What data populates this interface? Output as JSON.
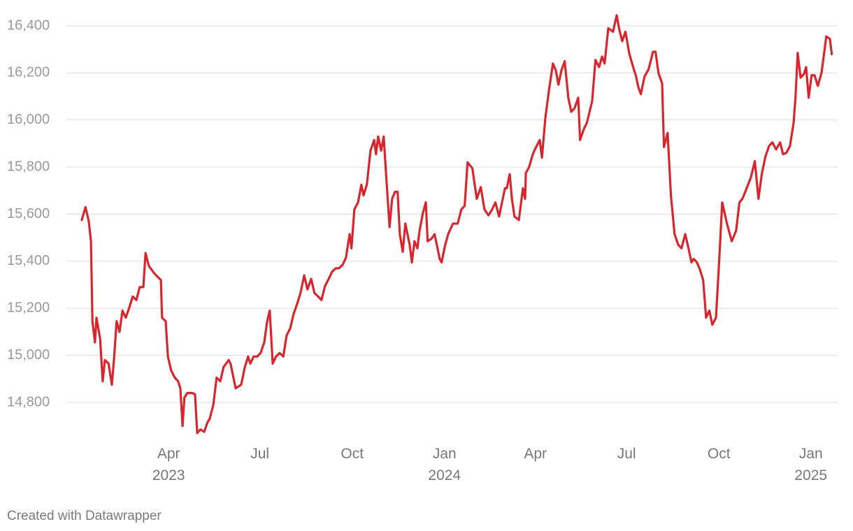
{
  "chart_data": {
    "type": "line",
    "color": "#d7262d",
    "credit": "Created with Datawrapper",
    "xlim": [
      2023.01,
      2025.073
    ],
    "ylim": [
      14650,
      16450
    ],
    "yticks": [
      {
        "value": 14800,
        "label": "14,800"
      },
      {
        "value": 15000,
        "label": "15,000"
      },
      {
        "value": 15200,
        "label": "15,200"
      },
      {
        "value": 15400,
        "label": "15,400"
      },
      {
        "value": 15600,
        "label": "15,600"
      },
      {
        "value": 15800,
        "label": "15,800"
      },
      {
        "value": 16000,
        "label": "16,000"
      },
      {
        "value": 16200,
        "label": "16,200"
      },
      {
        "value": 16400,
        "label": "16,400"
      }
    ],
    "xticks": [
      {
        "value": 2023.247,
        "label": "Apr",
        "year": "2023"
      },
      {
        "value": 2023.496,
        "label": "Jul"
      },
      {
        "value": 2023.748,
        "label": "Oct"
      },
      {
        "value": 2024.0,
        "label": "Jan",
        "year": "2024"
      },
      {
        "value": 2024.248,
        "label": "Apr"
      },
      {
        "value": 2024.497,
        "label": "Jul"
      },
      {
        "value": 2024.749,
        "label": "Oct"
      },
      {
        "value": 2025.0,
        "label": "Jan",
        "year": "2025"
      }
    ],
    "grid": true,
    "x": [
      2023.01,
      2023.02,
      2023.029,
      2023.035,
      2023.039,
      2023.046,
      2023.05,
      2023.06,
      2023.067,
      2023.073,
      2023.083,
      2023.092,
      2023.098,
      2023.105,
      2023.113,
      2023.121,
      2023.13,
      2023.14,
      2023.149,
      2023.159,
      2023.168,
      2023.178,
      2023.184,
      2023.193,
      2023.207,
      2023.216,
      2023.226,
      2023.229,
      2023.239,
      2023.245,
      2023.254,
      2023.264,
      2023.273,
      2023.279,
      2023.285,
      2023.29,
      2023.298,
      2023.311,
      2023.319,
      2023.325,
      2023.334,
      2023.344,
      2023.353,
      2023.359,
      2023.369,
      2023.378,
      2023.388,
      2023.397,
      2023.411,
      2023.416,
      2023.43,
      2023.445,
      2023.455,
      2023.464,
      2023.47,
      2023.479,
      2023.489,
      2023.498,
      2023.508,
      2023.516,
      2023.523,
      2023.531,
      2023.54,
      2023.55,
      2023.56,
      2023.569,
      2023.579,
      2023.588,
      2023.598,
      2023.607,
      2023.617,
      2023.626,
      2023.636,
      2023.645,
      2023.655,
      2023.664,
      2023.674,
      2023.684,
      2023.693,
      2023.703,
      2023.712,
      2023.722,
      2023.731,
      2023.741,
      2023.746,
      2023.754,
      2023.764,
      2023.773,
      2023.779,
      2023.788,
      2023.798,
      2023.808,
      2023.813,
      2023.819,
      2023.827,
      2023.834,
      2023.842,
      2023.85,
      2023.857,
      2023.865,
      2023.872,
      2023.878,
      2023.886,
      2023.893,
      2023.905,
      2023.911,
      2023.918,
      2023.926,
      2023.932,
      2023.941,
      2023.949,
      2023.954,
      2023.964,
      2023.973,
      2023.979,
      2023.987,
      2023.992,
      2024.002,
      2024.01,
      2024.023,
      2024.036,
      2024.046,
      2024.055,
      2024.063,
      2024.076,
      2024.088,
      2024.099,
      2024.109,
      2024.12,
      2024.13,
      2024.139,
      2024.149,
      2024.157,
      2024.165,
      2024.17,
      2024.178,
      2024.184,
      2024.191,
      2024.203,
      2024.214,
      2024.22,
      2024.222,
      2024.231,
      2024.241,
      2024.25,
      2024.26,
      2024.266,
      2024.275,
      2024.285,
      2024.296,
      2024.304,
      2024.311,
      2024.319,
      2024.328,
      2024.338,
      2024.346,
      2024.355,
      2024.365,
      2024.37,
      2024.38,
      2024.389,
      2024.403,
      2024.412,
      2024.422,
      2024.43,
      2024.437,
      2024.447,
      2024.46,
      2024.47,
      2024.477,
      2024.485,
      2024.494,
      2024.504,
      2024.512,
      2024.523,
      2024.529,
      2024.536,
      2024.546,
      2024.557,
      2024.569,
      2024.576,
      2024.584,
      2024.594,
      2024.599,
      2024.609,
      2024.618,
      2024.628,
      2024.638,
      2024.647,
      2024.657,
      2024.666,
      2024.674,
      2024.68,
      2024.689,
      2024.697,
      2024.706,
      2024.714,
      2024.723,
      2024.731,
      2024.741,
      2024.75,
      2024.758,
      2024.771,
      2024.784,
      2024.796,
      2024.805,
      2024.813,
      2024.821,
      2024.836,
      2024.847,
      2024.857,
      2024.866,
      2024.876,
      2024.886,
      2024.895,
      2024.905,
      2024.916,
      2024.924,
      2024.933,
      2024.943,
      2024.953,
      2024.958,
      2024.964,
      2024.972,
      2024.981,
      2024.987,
      2024.994,
      2025.002,
      2025.01,
      2025.019,
      2025.029,
      2025.035,
      2025.042,
      2025.052,
      2025.057
    ],
    "values": [
      15575,
      15630,
      15570,
      15485,
      15145,
      15055,
      15160,
      15070,
      14890,
      14980,
      14965,
      14875,
      14985,
      15145,
      15100,
      15190,
      15160,
      15205,
      15250,
      15235,
      15290,
      15290,
      15435,
      15380,
      15350,
      15335,
      15320,
      15160,
      15145,
      14995,
      14935,
      14905,
      14890,
      14860,
      14700,
      14820,
      14840,
      14840,
      14835,
      14670,
      14685,
      14675,
      14715,
      14730,
      14790,
      14905,
      14890,
      14950,
      14980,
      14965,
      14860,
      14875,
      14950,
      14995,
      14965,
      14995,
      14995,
      15010,
      15055,
      15145,
      15190,
      14965,
      14995,
      15010,
      14995,
      15085,
      15115,
      15175,
      15220,
      15265,
      15340,
      15280,
      15325,
      15265,
      15250,
      15235,
      15295,
      15325,
      15355,
      15370,
      15370,
      15385,
      15415,
      15515,
      15455,
      15620,
      15650,
      15725,
      15680,
      15725,
      15870,
      15915,
      15855,
      15930,
      15870,
      15930,
      15735,
      15545,
      15665,
      15695,
      15695,
      15515,
      15440,
      15560,
      15470,
      15395,
      15485,
      15455,
      15530,
      15605,
      15650,
      15485,
      15495,
      15515,
      15470,
      15410,
      15395,
      15470,
      15515,
      15560,
      15560,
      15620,
      15635,
      15820,
      15795,
      15665,
      15715,
      15620,
      15595,
      15620,
      15650,
      15590,
      15650,
      15710,
      15710,
      15770,
      15665,
      15590,
      15575,
      15710,
      15665,
      15775,
      15800,
      15855,
      15885,
      15915,
      15840,
      16005,
      16125,
      16240,
      16210,
      16150,
      16210,
      16250,
      16095,
      16035,
      16050,
      16095,
      15915,
      15960,
      15990,
      16080,
      16255,
      16225,
      16270,
      16240,
      16390,
      16375,
      16445,
      16385,
      16335,
      16375,
      16285,
      16240,
      16185,
      16140,
      16110,
      16185,
      16215,
      16290,
      16290,
      16200,
      16155,
      15885,
      15945,
      15680,
      15515,
      15470,
      15455,
      15515,
      15455,
      15395,
      15410,
      15395,
      15365,
      15320,
      15160,
      15190,
      15130,
      15160,
      15410,
      15650,
      15560,
      15485,
      15530,
      15650,
      15665,
      15695,
      15755,
      15825,
      15665,
      15770,
      15845,
      15890,
      15905,
      15875,
      15905,
      15855,
      15860,
      15890,
      15990,
      16095,
      16285,
      16180,
      16195,
      16225,
      16095,
      16190,
      16190,
      16145,
      16200,
      16270,
      16355,
      16345,
      16280
    ]
  }
}
